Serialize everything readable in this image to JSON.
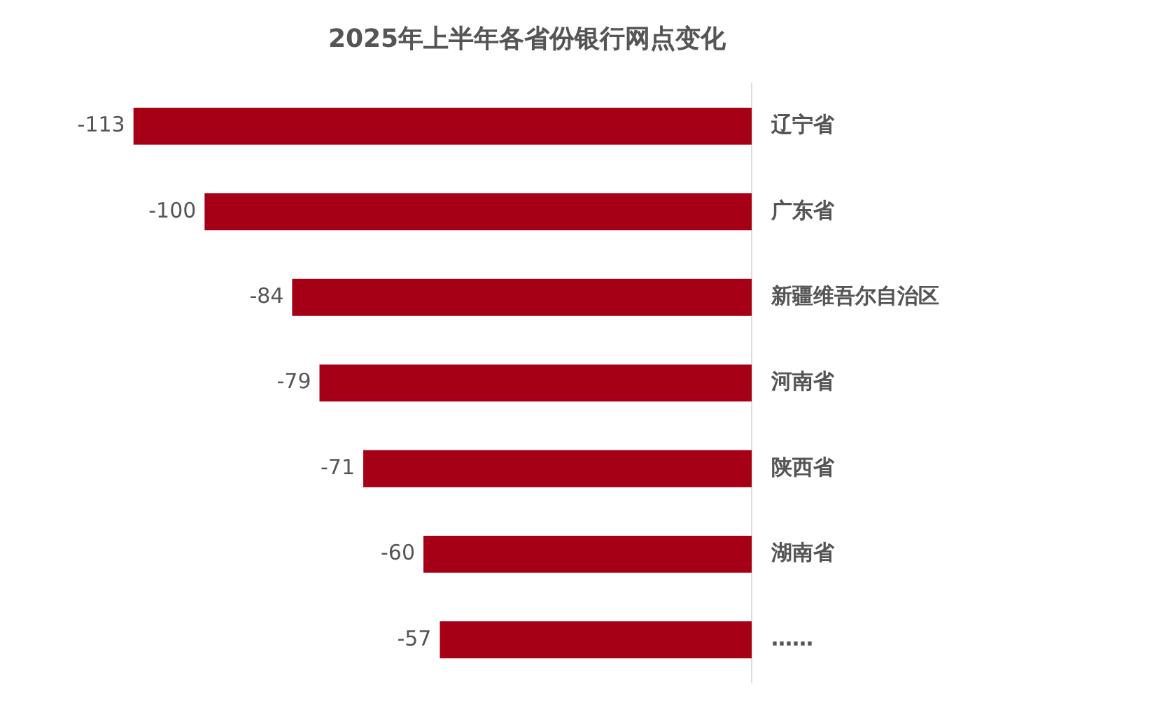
{
  "chart_data": {
    "type": "bar",
    "orientation": "horizontal",
    "title": "2025年上半年各省份银行网点变化",
    "categories": [
      "辽宁省",
      "广东省",
      "新疆维吾尔自治区",
      "河南省",
      "陕西省",
      "湖南省",
      "……"
    ],
    "values": [
      -113,
      -100,
      -84,
      -79,
      -71,
      -60,
      -57
    ],
    "color": "#a50016",
    "data_labels": true,
    "legend": false,
    "tick_labels": "y"
  }
}
